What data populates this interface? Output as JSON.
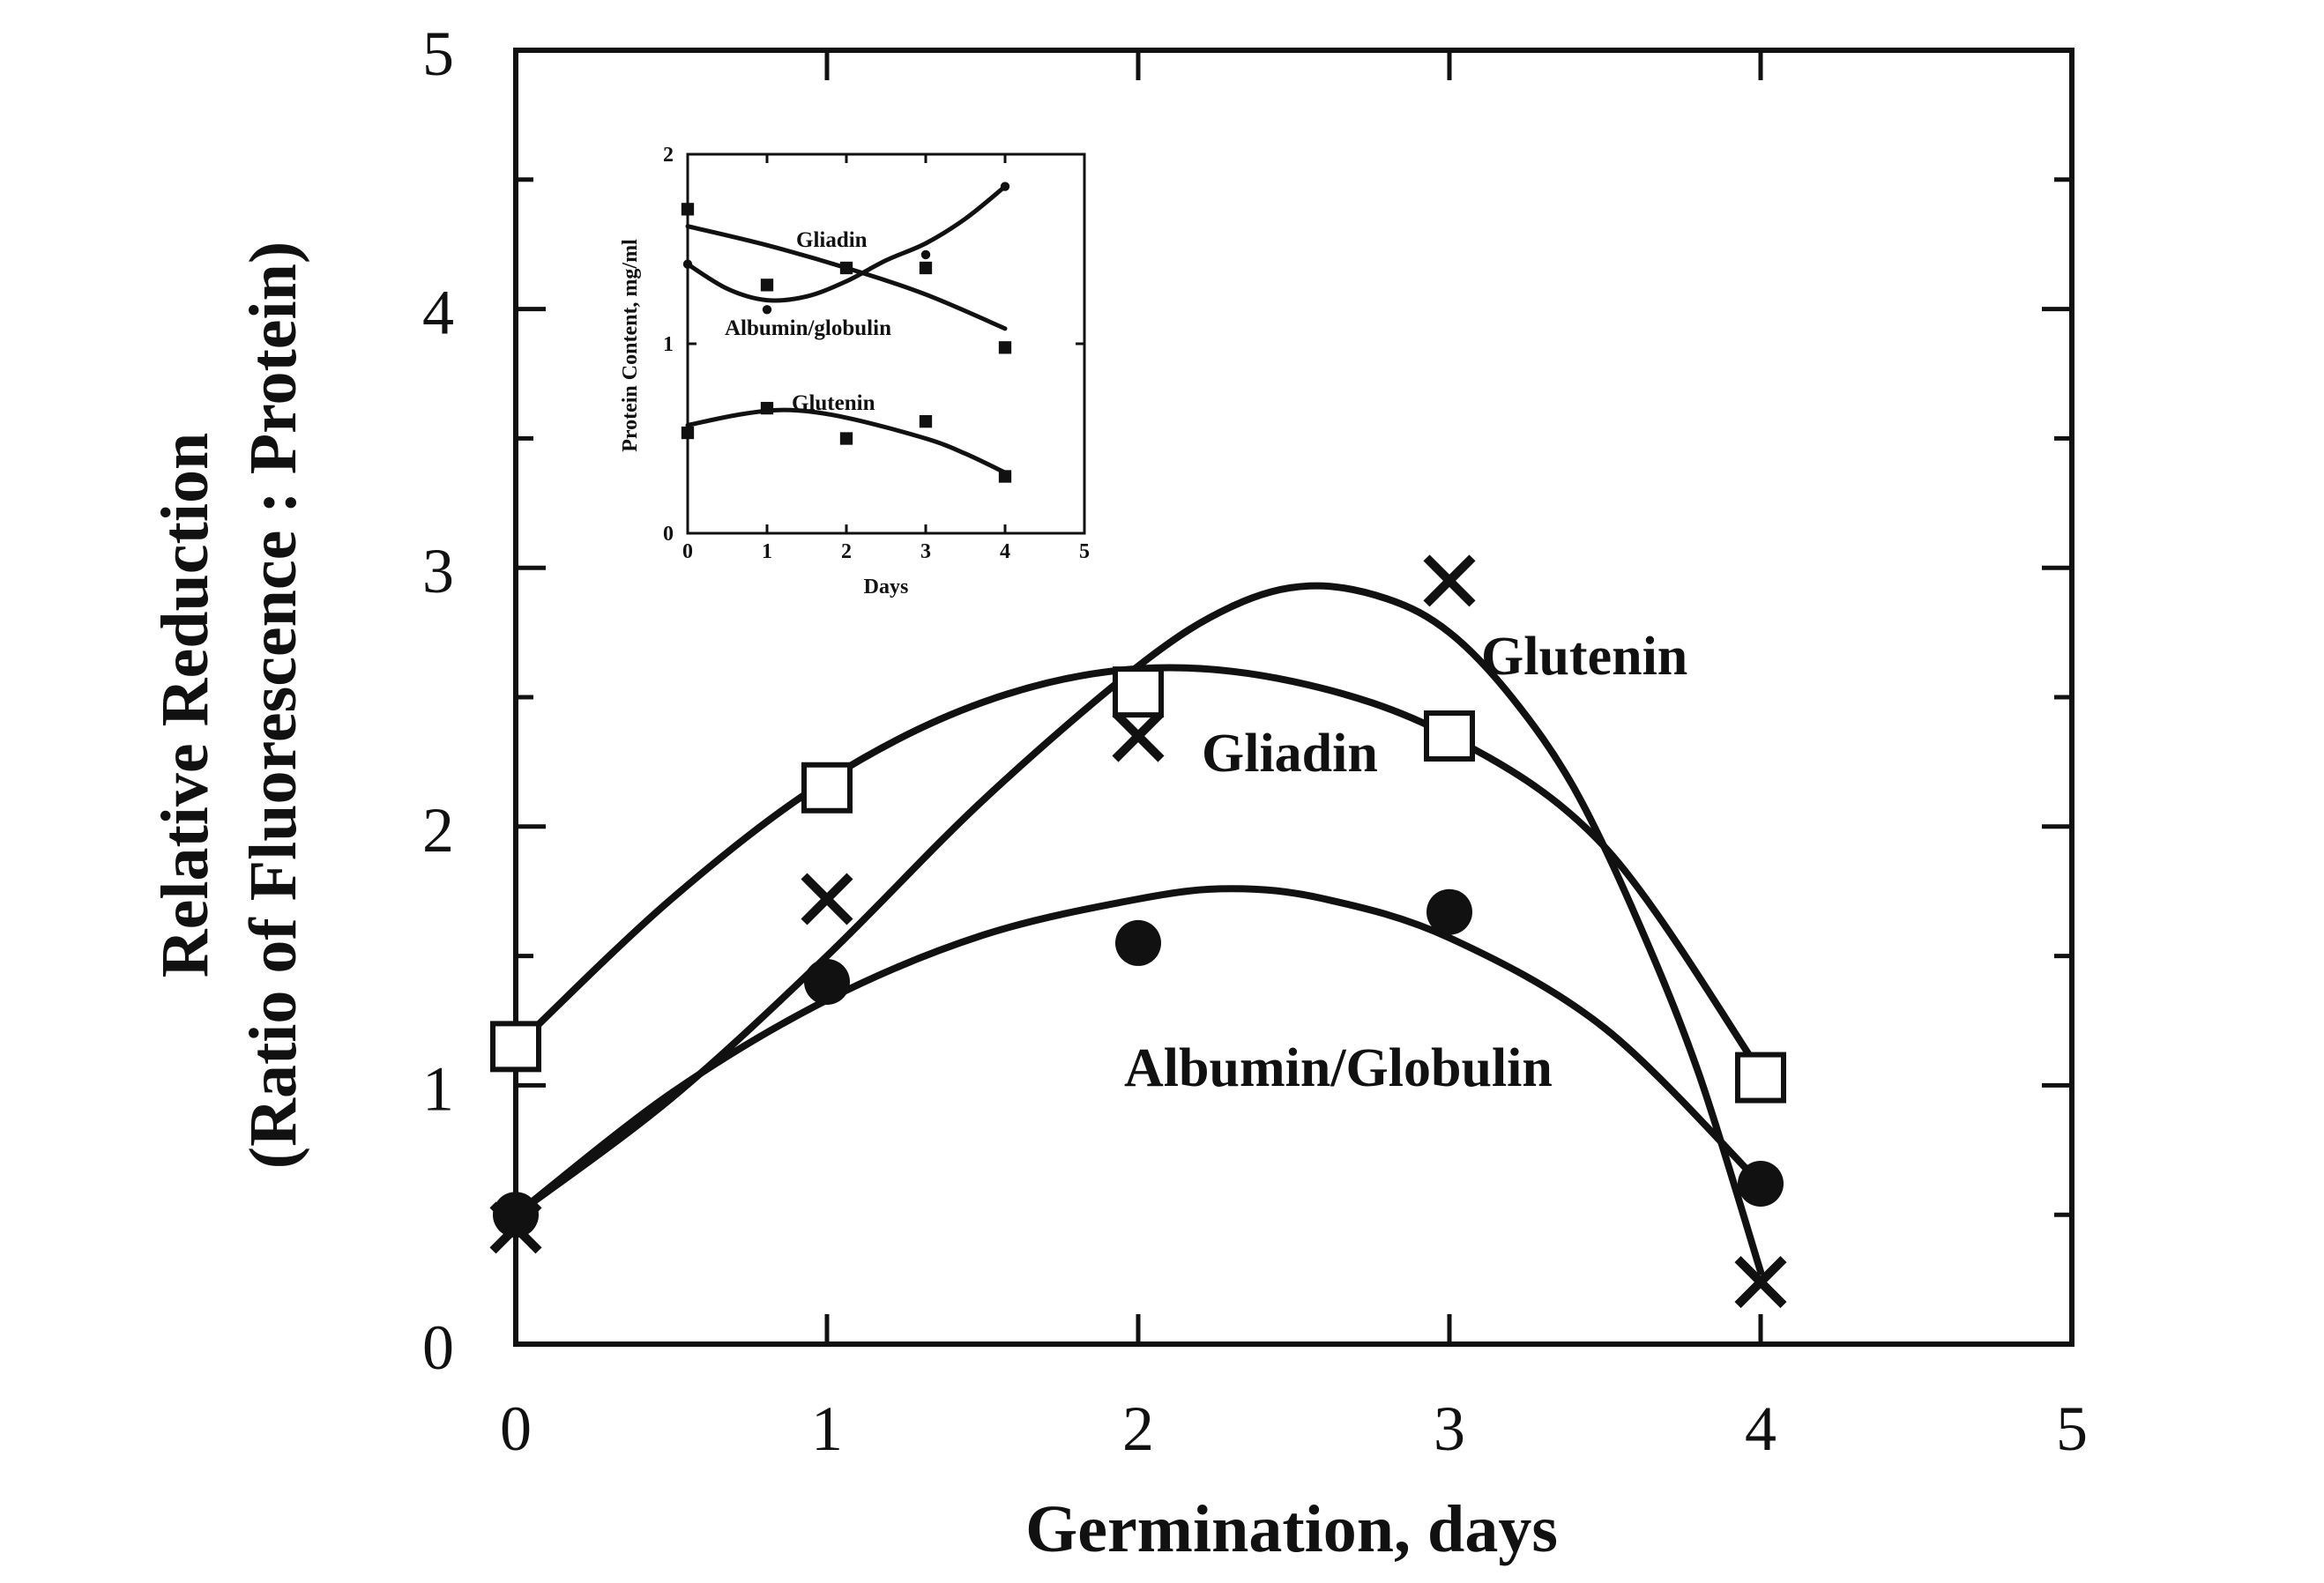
{
  "chart_data": [
    {
      "type": "line",
      "xlabel": "Germination, days",
      "ylabel": [
        "Relative Reduction",
        "(Ratio of Fluorescence : Protein)"
      ],
      "xlim": [
        0,
        5
      ],
      "ylim": [
        0,
        5
      ],
      "xticks": [
        "0",
        "1",
        "2",
        "3",
        "4",
        "5"
      ],
      "yticks": [
        "0",
        "1",
        "2",
        "3",
        "4",
        "5"
      ],
      "grid": false,
      "x": [
        0,
        1,
        2,
        3,
        4
      ],
      "series": [
        {
          "name": "Glutenin",
          "marker": "x",
          "values": [
            0.45,
            1.72,
            2.35,
            2.95,
            0.24
          ],
          "fit": [
            [
              0,
              0.5
            ],
            [
              0.5,
              0.95
            ],
            [
              1,
              1.5
            ],
            [
              1.5,
              2.1
            ],
            [
              2,
              2.62
            ],
            [
              2.3,
              2.85
            ],
            [
              2.55,
              2.93
            ],
            [
              2.8,
              2.88
            ],
            [
              3,
              2.75
            ],
            [
              3.2,
              2.5
            ],
            [
              3.4,
              2.15
            ],
            [
              3.6,
              1.65
            ],
            [
              3.8,
              1.05
            ],
            [
              4,
              0.28
            ]
          ]
        },
        {
          "name": "Gliadin",
          "marker": "open-square",
          "values": [
            1.15,
            2.15,
            2.52,
            2.35,
            1.03
          ],
          "fit": [
            [
              0,
              1.15
            ],
            [
              0.5,
              1.72
            ],
            [
              1,
              2.18
            ],
            [
              1.5,
              2.48
            ],
            [
              2,
              2.61
            ],
            [
              2.5,
              2.56
            ],
            [
              3,
              2.35
            ],
            [
              3.5,
              1.92
            ],
            [
              4,
              1.05
            ]
          ]
        },
        {
          "name": "Albumin/Globulin",
          "marker": "filled-circle",
          "values": [
            0.5,
            1.4,
            1.55,
            1.67,
            0.62
          ],
          "fit": [
            [
              0,
              0.5
            ],
            [
              0.5,
              0.97
            ],
            [
              1,
              1.33
            ],
            [
              1.5,
              1.58
            ],
            [
              2,
              1.72
            ],
            [
              2.3,
              1.76
            ],
            [
              2.6,
              1.72
            ],
            [
              3,
              1.57
            ],
            [
              3.5,
              1.22
            ],
            [
              4,
              0.62
            ]
          ]
        }
      ]
    },
    {
      "type": "line",
      "xlabel": "Days",
      "ylabel": "Protein Content, mg/ml",
      "xlim": [
        0,
        5
      ],
      "ylim": [
        0,
        2
      ],
      "xticks": [
        "0",
        "1",
        "2",
        "3",
        "4",
        "5"
      ],
      "yticks": [
        "0",
        "1",
        "2"
      ],
      "grid": false,
      "x": [
        0,
        1,
        2,
        3,
        4
      ],
      "series": [
        {
          "name": "Gliadin",
          "marker": "filled-square",
          "values": [
            1.71,
            1.31,
            1.4,
            1.4,
            0.98
          ],
          "fit": [
            [
              0,
              1.62
            ],
            [
              1,
              1.52
            ],
            [
              2,
              1.4
            ],
            [
              3,
              1.26
            ],
            [
              4,
              1.08
            ]
          ]
        },
        {
          "name": "Albumin/globulin",
          "marker": "small-dot",
          "values": [
            1.42,
            1.18,
            1.4,
            1.47,
            1.83
          ],
          "fit": [
            [
              0,
              1.42
            ],
            [
              0.5,
              1.29
            ],
            [
              1,
              1.23
            ],
            [
              1.5,
              1.25
            ],
            [
              2,
              1.33
            ],
            [
              2.5,
              1.44
            ],
            [
              3,
              1.53
            ],
            [
              3.5,
              1.66
            ],
            [
              4,
              1.83
            ]
          ]
        },
        {
          "name": "Glutenin",
          "marker": "filled-square",
          "values": [
            0.53,
            0.66,
            0.5,
            0.59,
            0.3
          ],
          "fit": [
            [
              0,
              0.57
            ],
            [
              0.7,
              0.63
            ],
            [
              1.3,
              0.65
            ],
            [
              2,
              0.61
            ],
            [
              3,
              0.5
            ],
            [
              3.5,
              0.42
            ],
            [
              4,
              0.32
            ]
          ]
        }
      ]
    }
  ]
}
